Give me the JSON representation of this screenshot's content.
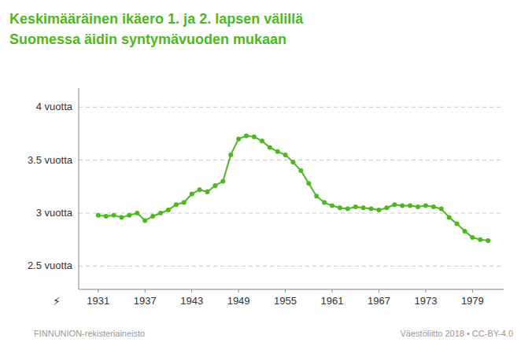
{
  "chart_data": {
    "type": "line",
    "title": "Keskimääräinen ikäero 1. ja 2. lapsen välillä",
    "subtitle": "Suomessa äidin syntymävuoden mukaan",
    "annotations": [
      "FINNUNION-rekisteriaineisto",
      "Väestöliitto 2018 • CC-BY-4.0",
      "⚡"
    ],
    "color": "#4db81e",
    "marker": "circle",
    "grid": true,
    "x": [
      1931,
      1932,
      1933,
      1934,
      1935,
      1936,
      1937,
      1938,
      1939,
      1940,
      1941,
      1942,
      1943,
      1944,
      1945,
      1946,
      1947,
      1948,
      1949,
      1950,
      1951,
      1952,
      1953,
      1954,
      1955,
      1956,
      1957,
      1958,
      1959,
      1960,
      1961,
      1962,
      1963,
      1964,
      1965,
      1966,
      1967,
      1968,
      1969,
      1970,
      1971,
      1972,
      1973,
      1974,
      1975,
      1976,
      1977,
      1978,
      1979,
      1980,
      1981
    ],
    "values": [
      2.98,
      2.97,
      2.98,
      2.96,
      2.98,
      3.0,
      2.93,
      2.97,
      3.0,
      3.03,
      3.08,
      3.1,
      3.18,
      3.22,
      3.2,
      3.26,
      3.3,
      3.55,
      3.7,
      3.73,
      3.72,
      3.68,
      3.62,
      3.58,
      3.55,
      3.48,
      3.4,
      3.28,
      3.16,
      3.1,
      3.07,
      3.05,
      3.04,
      3.06,
      3.05,
      3.04,
      3.03,
      3.05,
      3.08,
      3.07,
      3.07,
      3.06,
      3.07,
      3.06,
      3.04,
      2.96,
      2.9,
      2.83,
      2.77,
      2.75,
      2.74
    ],
    "xlim": [
      1928.5,
      1983
    ],
    "ylim": [
      2.28,
      4.18
    ],
    "xticks": [
      1931,
      1937,
      1943,
      1949,
      1955,
      1961,
      1967,
      1973,
      1979
    ],
    "yticks": [
      {
        "value": 2.5,
        "label": "2.5 vuotta"
      },
      {
        "value": 3.0,
        "label": "3 vuotta"
      },
      {
        "value": 3.5,
        "label": "3.5 vuotta"
      },
      {
        "value": 4.0,
        "label": "4 vuotta"
      }
    ]
  }
}
